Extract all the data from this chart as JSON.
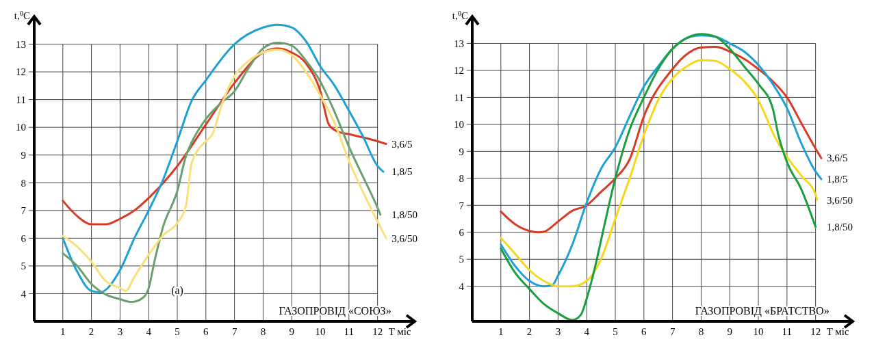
{
  "chart_data": [
    {
      "type": "line",
      "title": "ГАЗОПРОВІД «СОЮЗ»",
      "xlabel": "T міс",
      "ylabel": "t,$^{0}$C",
      "annotations": [
        "(a)"
      ],
      "xlim": [
        0,
        13.3
      ],
      "ylim": [
        3,
        14
      ],
      "xticks": [
        1,
        2,
        3,
        4,
        5,
        6,
        7,
        8,
        9,
        10,
        11,
        12
      ],
      "yticks": [
        4,
        5,
        6,
        7,
        8,
        9,
        10,
        11,
        12,
        13
      ],
      "grid": true,
      "legend": false,
      "marker": "none",
      "line_style": "solid",
      "series": [
        {
          "name": "3,6/5",
          "color": "#d93a26",
          "x": [
            1,
            1.5,
            2,
            2.5,
            3,
            3.5,
            4,
            5,
            6,
            7,
            8,
            8.5,
            9,
            9.5,
            10,
            10.3,
            10.6,
            11,
            12,
            12.3
          ],
          "values": [
            7.35,
            6.8,
            6.5,
            6.5,
            6.7,
            7.0,
            7.45,
            8.6,
            10.1,
            11.6,
            12.7,
            12.85,
            12.7,
            12.3,
            11.3,
            10.1,
            9.85,
            9.75,
            9.5,
            9.4
          ]
        },
        {
          "name": "1,8/5",
          "color": "#1ea0d4",
          "x": [
            1,
            1.5,
            2,
            2.3,
            3,
            3.5,
            4,
            4.5,
            5,
            5.5,
            6,
            7,
            8,
            8.5,
            9,
            9.5,
            10,
            10.5,
            11,
            11.5,
            12,
            12.2
          ],
          "values": [
            6.0,
            4.8,
            4.1,
            4.05,
            4.85,
            6.0,
            7.0,
            8.1,
            9.5,
            10.95,
            11.7,
            13.0,
            13.6,
            13.7,
            13.6,
            13.1,
            12.2,
            11.5,
            10.6,
            9.65,
            8.6,
            8.4
          ]
        },
        {
          "name": "1,8/50",
          "color": "#6a9f6e",
          "x": [
            1,
            1.5,
            2,
            2.5,
            3,
            3.4,
            3.8,
            4,
            4.2,
            4.5,
            5,
            5.3,
            5.5,
            6,
            6.5,
            7,
            7.5,
            8,
            8.5,
            9,
            9.5,
            10,
            10.5,
            11,
            11.5,
            12,
            12.1
          ],
          "values": [
            5.45,
            5.0,
            4.35,
            3.97,
            3.8,
            3.7,
            3.85,
            4.2,
            5.15,
            6.4,
            7.7,
            8.95,
            9.45,
            10.3,
            10.85,
            11.3,
            12.15,
            12.85,
            13.05,
            12.95,
            12.4,
            11.65,
            10.55,
            9.3,
            8.2,
            7.1,
            6.85
          ]
        },
        {
          "name": "3,6/50",
          "color": "#f9e07a",
          "x": [
            1,
            1.5,
            2,
            2.5,
            3,
            3.2,
            3.5,
            4,
            4.5,
            5,
            5.3,
            5.5,
            6,
            6.2,
            6.6,
            7,
            7.5,
            8,
            8.5,
            9,
            9.5,
            10,
            10.5,
            11,
            11.5,
            12,
            12.3
          ],
          "values": [
            6.08,
            5.7,
            5.15,
            4.45,
            4.2,
            4.1,
            4.6,
            5.4,
            6.1,
            6.55,
            7.15,
            8.7,
            9.5,
            9.7,
            10.95,
            11.85,
            12.4,
            12.7,
            12.8,
            12.6,
            12.0,
            11.15,
            10.15,
            8.8,
            7.65,
            6.6,
            6.0
          ]
        }
      ]
    },
    {
      "type": "line",
      "title": "ГАЗОПРОВІД «БРАТСТВО»",
      "xlabel": "T міс",
      "ylabel": "t,$^{0}$C",
      "xlim": [
        0,
        13.3
      ],
      "ylim": [
        2.7,
        14
      ],
      "xticks": [
        1,
        2,
        3,
        4,
        5,
        6,
        7,
        8,
        9,
        10,
        11,
        12
      ],
      "yticks": [
        4,
        5,
        6,
        7,
        8,
        9,
        10,
        11,
        12,
        13
      ],
      "grid": true,
      "legend": false,
      "marker": "none",
      "line_style": "solid",
      "series": [
        {
          "name": "3,6/5",
          "color": "#d93a26",
          "x": [
            1,
            1.5,
            2,
            2.3,
            2.5,
            3,
            3.5,
            4,
            4.5,
            5,
            5.5,
            6,
            7,
            7.5,
            8,
            8.5,
            9,
            9.5,
            10,
            10.5,
            11,
            11.5,
            12,
            12.2
          ],
          "values": [
            6.77,
            6.3,
            6.05,
            6.0,
            6.02,
            6.4,
            6.8,
            7.0,
            7.5,
            8.0,
            8.7,
            10.3,
            12.05,
            12.6,
            12.85,
            12.87,
            12.7,
            12.43,
            12.05,
            11.6,
            11.0,
            10.05,
            9.1,
            8.75
          ]
        },
        {
          "name": "1,8/5",
          "color": "#1ea0d4",
          "x": [
            1,
            1.5,
            2,
            2.5,
            2.8,
            3,
            3.5,
            4,
            4.5,
            5,
            5.5,
            6,
            6.5,
            7,
            7.5,
            8,
            8.5,
            9,
            9.5,
            10,
            10.5,
            11,
            11.5,
            12,
            12.2
          ],
          "values": [
            5.55,
            4.75,
            4.2,
            4.0,
            4.05,
            4.4,
            5.55,
            7.1,
            8.35,
            9.15,
            10.3,
            11.4,
            12.15,
            12.8,
            13.2,
            13.3,
            13.25,
            13.0,
            12.7,
            12.2,
            11.5,
            10.6,
            9.3,
            8.25,
            7.97
          ]
        },
        {
          "name": "3,6/50",
          "color": "#f5d81c",
          "x": [
            1,
            1.5,
            2,
            2.5,
            3,
            3.5,
            4,
            4.5,
            5,
            5.5,
            6,
            6.5,
            7,
            7.5,
            8,
            8.5,
            9,
            9.5,
            10,
            10.3,
            10.5,
            11,
            11.5,
            12,
            12.05
          ],
          "values": [
            5.8,
            5.2,
            4.6,
            4.2,
            4.0,
            4.0,
            4.2,
            5.0,
            6.5,
            8.0,
            9.6,
            10.9,
            11.7,
            12.15,
            12.38,
            12.35,
            12.05,
            11.6,
            10.9,
            10.2,
            9.7,
            8.8,
            8.1,
            7.4,
            7.2
          ]
        },
        {
          "name": "1,8/50",
          "color": "#1a9e3e",
          "x": [
            1,
            1.5,
            2,
            2.5,
            3,
            3.5,
            3.8,
            4,
            4.3,
            4.5,
            5,
            5.5,
            6,
            6.5,
            7,
            7.5,
            8,
            8.5,
            9,
            9.5,
            10,
            10.5,
            10.7,
            11,
            11.5,
            12
          ],
          "values": [
            5.4,
            4.5,
            3.9,
            3.35,
            3.0,
            2.75,
            2.95,
            3.55,
            4.75,
            5.7,
            8.0,
            9.8,
            11.0,
            12.05,
            12.8,
            13.2,
            13.35,
            13.25,
            12.8,
            12.15,
            11.5,
            10.6,
            9.6,
            8.6,
            7.6,
            6.2
          ]
        }
      ]
    }
  ]
}
